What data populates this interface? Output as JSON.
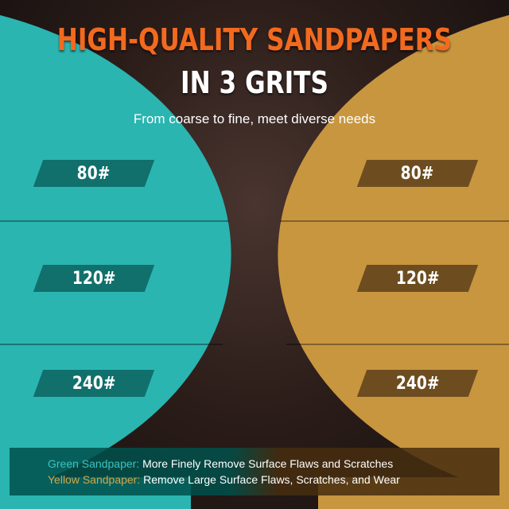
{
  "header": {
    "title_line1": "HIGH-QUALITY SANDPAPERS",
    "title_line2": "IN 3 GRITS",
    "subtitle": "From coarse to fine, meet diverse needs"
  },
  "colors": {
    "green_disc": "#2ab5b1",
    "yellow_disc": "#c8963f",
    "title_accent": "#f26a1f"
  },
  "green_grits": [
    "80#",
    "120#",
    "240#"
  ],
  "yellow_grits": [
    "80#",
    "120#",
    "240#"
  ],
  "notes": [
    {
      "label": "Green Sandpaper:",
      "text": " More Finely Remove Surface Flaws and Scratches"
    },
    {
      "label": "Yellow Sandpaper:",
      "text": " Remove Large Surface Flaws, Scratches, and Wear"
    }
  ]
}
